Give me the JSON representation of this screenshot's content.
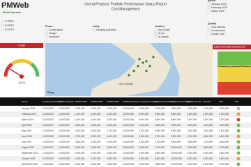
{
  "header": {
    "logo": "PMWeb",
    "tagline": "Build Operate",
    "title": "Overall Projects' Portfolio Performance Status Report",
    "subtitle": "Cost Management"
  },
  "projects": [
    "D-02/13",
    "D-04/15",
    "D-07/15"
  ],
  "filters": [
    {
      "label": "Phase",
      "options": [
        "Construction",
        "Design",
        "Handover"
      ]
    },
    {
      "label": "entity",
      "options": [
        "Housing Authority"
      ]
    },
    {
      "label": "location",
      "options": [
        "Abu Dhabi",
        "Al Ain",
        "Al Dafrah"
      ]
    },
    {
      "label": "period",
      "options": [
        "January 2020",
        "February 2020",
        "March 2020"
      ]
    },
    {
      "label": "Quality",
      "options": [
        "Civil defense",
        "Government",
        "Health Care"
      ]
    }
  ],
  "gauge": {
    "title": "Cost",
    "value": "16.54"
  },
  "map": {
    "label": "Abu Dhabi",
    "attribution": "Bing"
  },
  "trend": {
    "title": "Last 3 Months Performan"
  },
  "table": {
    "columns": [
      "period",
      "Funding Authorized",
      "CAPEX Original",
      "CAPEX 2020",
      "CAPEX 2021",
      "CAPEX 2022",
      "CAPEX Revised",
      "Commitment Original",
      "Commitment Revised",
      "Commitment Projected",
      "Planned Invoice",
      "Invoiced",
      "Paid",
      "SPI"
    ],
    "rows": [
      [
        "January 2020",
        "11,000,000",
        "10,000,000",
        "1,200,000",
        "4,500,000",
        "4,300,000",
        "10,000,000",
        "9,000,000",
        "9,500,000",
        "9,800,000",
        "1,200,000",
        "1,100,000",
        "1,000,000"
      ],
      [
        "February 2020",
        "11,000,000",
        "10,000,000",
        "1,300,000",
        "4,500,000",
        "4,200,000",
        "10,000,000",
        "9,000,000",
        "9,500,000",
        "9,800,000",
        "1,300,000",
        "1,200,000",
        "1,100,000"
      ],
      [
        "March 2020",
        "11,000,000",
        "10,000,000",
        "1,400,000",
        "4,400,000",
        "4,200,000",
        "10,000,000",
        "9,000,000",
        "9,600,000",
        "9,800,000",
        "1,400,000",
        "1,300,000",
        "1,200,000"
      ],
      [
        "April 2020",
        "11,000,000",
        "10,000,000",
        "1,500,000",
        "4,400,000",
        "4,100,000",
        "10,000,000",
        "9,100,000",
        "9,600,000",
        "9,900,000",
        "1,500,000",
        "1,400,000",
        "1,300,000"
      ],
      [
        "May 2020",
        "11,000,000",
        "10,000,000",
        "1,600,000",
        "4,300,000",
        "4,100,000",
        "10,000,000",
        "9,100,000",
        "9,600,000",
        "9,900,000",
        "1,600,000",
        "1,500,000",
        "1,400,000"
      ],
      [
        "June 2020",
        "11,000,000",
        "10,000,000",
        "1,700,000",
        "4,300,000",
        "4,000,000",
        "10,000,000",
        "9,100,000",
        "9,700,000",
        "9,900,000",
        "1,700,000",
        "1,600,000",
        "1,500,000"
      ],
      [
        "July 2020",
        "11,000,000",
        "10,000,000",
        "1,800,000",
        "4,200,000",
        "4,000,000",
        "10,000,000",
        "9,200,000",
        "9,700,000",
        "9,900,000",
        "1,800,000",
        "1,700,000",
        "1,600,000"
      ],
      [
        "August 2020",
        "11,000,000",
        "10,000,000",
        "1,900,000",
        "4,200,000",
        "3,900,000",
        "10,000,000",
        "9,200,000",
        "9,700,000",
        "10,000,000",
        "1,900,000",
        "1,800,000",
        "1,700,000"
      ],
      [
        "September 2020",
        "11,000,000",
        "10,000,000",
        "2,000,000",
        "4,100,000",
        "3,900,000",
        "10,000,000",
        "9,200,000",
        "9,800,000",
        "10,000,000",
        "2,000,000",
        "1,900,000",
        "1,800,000"
      ],
      [
        "October 2020",
        "11,000,000",
        "10,000,000",
        "2,100,000",
        "4,100,000",
        "3,800,000",
        "10,000,000",
        "9,300,000",
        "9,800,000",
        "10,000,000",
        "2,100,000",
        "2,000,000",
        "1,900,000"
      ],
      [
        "November 2020",
        "11,000,000",
        "10,000,000",
        "2,200,000",
        "4,000,000",
        "3,800,000",
        "10,000,000",
        "9,300,000",
        "9,800,000",
        "10,000,000",
        "2,200,000",
        "2,100,000",
        "2,000,000"
      ]
    ],
    "status": [
      "#bbbbbb",
      "#f0a030",
      "#e04030",
      "#6cc04a",
      "#6cc04a",
      "#f0a030",
      "#6cc04a",
      "#6cc04a",
      "#6cc04a",
      "#f0a030",
      "#6cc04a"
    ]
  }
}
